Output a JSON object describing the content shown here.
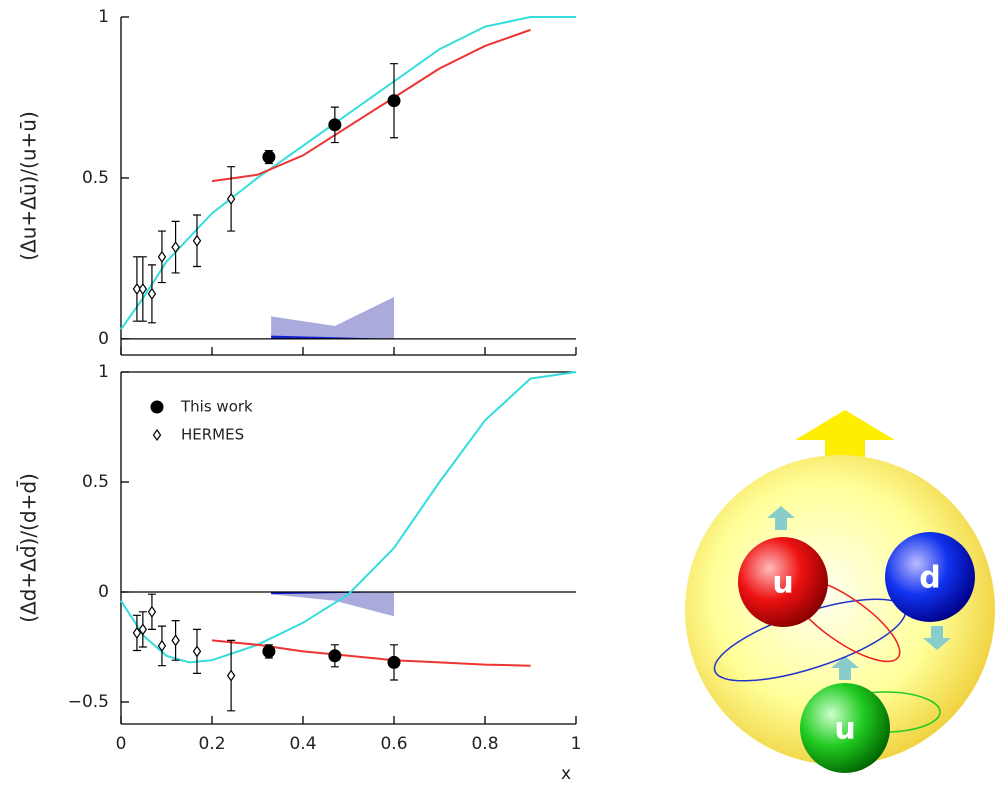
{
  "chart_data": [
    {
      "type": "scatter",
      "ylabel": "(Δu+Δū)/(u+ū)",
      "xlim": [
        0,
        1
      ],
      "xticks": [
        0,
        0.2,
        0.4,
        0.6,
        0.8,
        1
      ],
      "ylim": [
        -0.05,
        1
      ],
      "yticks": [
        0,
        0.5,
        1
      ],
      "series": [
        {
          "marker": "filled-circle",
          "color": "#000000",
          "x": [
            0.325,
            0.47,
            0.6
          ],
          "values": [
            0.565,
            0.665,
            0.74
          ],
          "errors": [
            0.02,
            0.055,
            0.115
          ]
        },
        {
          "marker": "open-diamond",
          "color": "#000000",
          "x": [
            0.035,
            0.048,
            0.068,
            0.09,
            0.12,
            0.167,
            0.242
          ],
          "values": [
            0.155,
            0.155,
            0.14,
            0.255,
            0.285,
            0.305,
            0.435
          ],
          "errors": [
            0.1,
            0.1,
            0.09,
            0.08,
            0.08,
            0.08,
            0.1
          ]
        }
      ],
      "curves": [
        {
          "color": "#33dddd",
          "x": [
            0,
            0.05,
            0.1,
            0.2,
            0.3,
            0.4,
            0.5,
            0.6,
            0.7,
            0.8,
            0.9,
            1
          ],
          "values": [
            0.03,
            0.13,
            0.24,
            0.39,
            0.5,
            0.6,
            0.7,
            0.8,
            0.9,
            0.97,
            1.0,
            1.0
          ]
        },
        {
          "color": "#ee3333",
          "x": [
            0.2,
            0.3,
            0.4,
            0.5,
            0.6,
            0.7,
            0.8,
            0.9
          ],
          "values": [
            0.49,
            0.51,
            0.57,
            0.66,
            0.75,
            0.84,
            0.91,
            0.96
          ]
        }
      ],
      "bands": [
        {
          "color": "#aaaadd",
          "x": [
            0.33,
            0.47,
            0.6
          ],
          "values": [
            0.07,
            0.04,
            0.13
          ]
        },
        {
          "color": "#1122cc",
          "x": [
            0.33,
            0.47,
            0.6
          ],
          "values": [
            0.01,
            0.005,
            0
          ]
        }
      ]
    },
    {
      "type": "scatter",
      "ylabel": "(Δd+Δd̄)/(d+d̄)",
      "xlabel": "x",
      "legend": "upper left",
      "xlim": [
        0,
        1
      ],
      "xticks": [
        0,
        0.2,
        0.4,
        0.6,
        0.8,
        1
      ],
      "ylim": [
        -0.6,
        1
      ],
      "yticks": [
        {
          "value": -0.5,
          "label": "−0.5"
        },
        0,
        0.5,
        1
      ],
      "series": [
        {
          "name": "This work",
          "marker": "filled-circle",
          "color": "#000000",
          "x": [
            0.325,
            0.47,
            0.6
          ],
          "values": [
            -0.27,
            -0.29,
            -0.32
          ],
          "errors": [
            0.03,
            0.05,
            0.08
          ]
        },
        {
          "name": "HERMES",
          "marker": "open-diamond",
          "color": "#000000",
          "x": [
            0.035,
            0.048,
            0.068,
            0.09,
            0.12,
            0.167,
            0.242
          ],
          "values": [
            -0.186,
            -0.17,
            -0.09,
            -0.245,
            -0.22,
            -0.27,
            -0.38
          ],
          "errors": [
            0.08,
            0.08,
            0.08,
            0.09,
            0.09,
            0.1,
            0.16
          ]
        }
      ],
      "curves": [
        {
          "color": "#33dddd",
          "x": [
            0,
            0.05,
            0.1,
            0.15,
            0.2,
            0.3,
            0.4,
            0.5,
            0.6,
            0.7,
            0.8,
            0.9,
            1
          ],
          "values": [
            -0.04,
            -0.2,
            -0.29,
            -0.32,
            -0.31,
            -0.24,
            -0.14,
            -0.01,
            0.2,
            0.5,
            0.78,
            0.97,
            1.0
          ]
        },
        {
          "color": "#ee3333",
          "x": [
            0.2,
            0.3,
            0.4,
            0.5,
            0.6,
            0.7,
            0.8,
            0.9
          ],
          "values": [
            -0.22,
            -0.24,
            -0.27,
            -0.29,
            -0.31,
            -0.32,
            -0.33,
            -0.335
          ]
        }
      ],
      "bands": [
        {
          "color": "#aaaadd",
          "x": [
            0.33,
            0.47,
            0.6
          ],
          "values": [
            -0.01,
            -0.04,
            -0.11
          ]
        },
        {
          "color": "#1122cc",
          "x": [
            0.33,
            0.47,
            0.6
          ],
          "values": [
            -0.01,
            -0.005,
            0
          ]
        }
      ]
    }
  ],
  "diagram": {
    "quarks": [
      "u",
      "d",
      "u"
    ]
  }
}
